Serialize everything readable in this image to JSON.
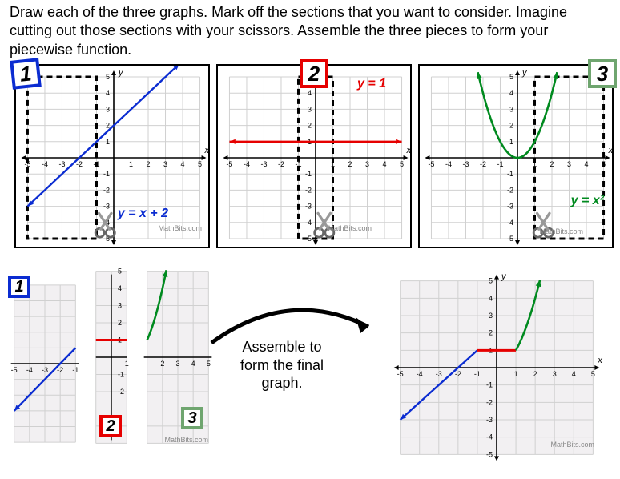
{
  "instructions": "Draw each of the three graphs. Mark off the sections that you want to consider. Imagine cutting out those sections with your scissors. Assemble the three pieces to form your piecewise function.",
  "assemble_text": "Assemble to form the final graph.",
  "watermark": "MathBits.com",
  "axis": {
    "xmin": -5,
    "xmax": 5,
    "ymin": -5,
    "ymax": 5,
    "x_label": "x",
    "y_label": "y",
    "tick_step": 1
  },
  "colors": {
    "grid": "#d0d0d0",
    "axis": "#000000",
    "line1": "#0b2cd1",
    "line2": "#e60000",
    "line3": "#008a1f",
    "dash": "#000000",
    "badge1_border": "#0b2cd1",
    "badge2_border": "#e60000",
    "badge3_border": "#6fa56f",
    "bg": "#ffffff",
    "final_grid_bg": "#f2f0f2"
  },
  "panels": {
    "p1": {
      "badge": "1",
      "equation": "y = x + 2",
      "equation_color": "#0b2cd1",
      "type": "line",
      "slope": 1,
      "intercept": 2,
      "draw_from": [
        -5,
        -3
      ],
      "draw_to": [
        3.8,
        5.8
      ],
      "cut_region": {
        "xmin": -5,
        "xmax": -1,
        "ymin": -5,
        "ymax": 5
      },
      "scissor_at": [
        -0.5,
        -4.2
      ]
    },
    "p2": {
      "badge": "2",
      "equation": "y = 1",
      "equation_color": "#e60000",
      "type": "hline",
      "y": 1,
      "draw_from": [
        -5,
        1
      ],
      "draw_to": [
        5,
        1
      ],
      "cut_region": {
        "xmin": -1,
        "xmax": 1,
        "ymin": -5,
        "ymax": 5
      },
      "scissor_at": [
        0.5,
        -4.2
      ]
    },
    "p3": {
      "badge": "3",
      "equation": "y = x²",
      "equation_color": "#008a1f",
      "type": "parabola",
      "a": 1,
      "draw_from_x": -2.3,
      "draw_to_x": 2.3,
      "cut_region": {
        "xmin": 1,
        "xmax": 5,
        "ymin": -5,
        "ymax": 5
      },
      "scissor_at": [
        1.5,
        -4.2
      ]
    }
  },
  "final": {
    "pieces": [
      {
        "type": "line",
        "from": [
          -5,
          -3
        ],
        "to": [
          -1,
          1
        ],
        "color": "#0b2cd1",
        "arrow_start": true
      },
      {
        "type": "hline",
        "from": [
          -1,
          1
        ],
        "to": [
          1,
          1
        ],
        "color": "#e60000"
      },
      {
        "type": "parabola",
        "from_x": 1,
        "to_x": 2.25,
        "color": "#008a1f",
        "arrow_end": true
      }
    ]
  },
  "typography": {
    "instruction_fontsize": 18,
    "equation_fontsize": 16,
    "badge_fontsize": 26,
    "axis_label_fontsize": 10,
    "assemble_fontsize": 18
  }
}
